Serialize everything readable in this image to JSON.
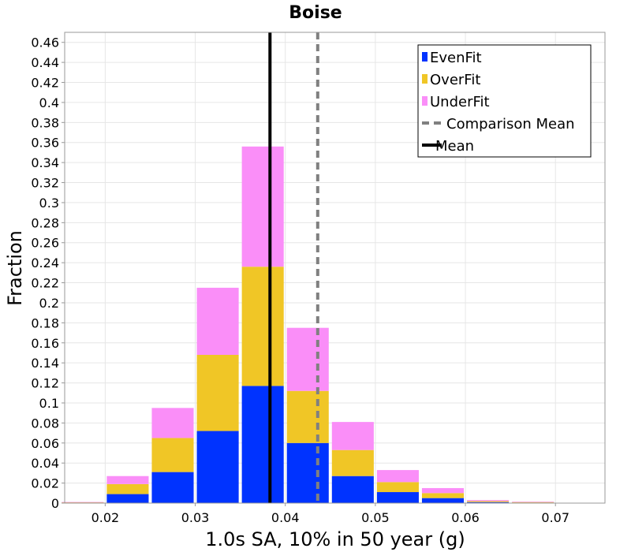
{
  "chart_data": {
    "type": "bar",
    "stacked": true,
    "title": "Boise",
    "xlabel": "1.0s SA, 10% in 50 year (g)",
    "ylabel": "Fraction",
    "xlim": [
      0.0155,
      0.0755
    ],
    "ylim": [
      0,
      0.47
    ],
    "grid": true,
    "legend_position": "top-right",
    "bin_width": 0.005,
    "x": [
      0.0175,
      0.0225,
      0.0275,
      0.0325,
      0.0375,
      0.0425,
      0.0475,
      0.0525,
      0.0575,
      0.0625,
      0.0675,
      0.0725
    ],
    "series": [
      {
        "name": "EvenFit",
        "color": "#0033ff",
        "values": [
          0.0005,
          0.009,
          0.031,
          0.072,
          0.117,
          0.06,
          0.027,
          0.011,
          0.005,
          0.001,
          0.0005,
          0.0
        ]
      },
      {
        "name": "OverFit",
        "color": "#f0c626",
        "values": [
          0.0003,
          0.01,
          0.034,
          0.076,
          0.119,
          0.052,
          0.026,
          0.01,
          0.005,
          0.001,
          0.0005,
          0.0
        ]
      },
      {
        "name": "UnderFit",
        "color": "#fa8ef8",
        "values": [
          0.0003,
          0.008,
          0.03,
          0.067,
          0.12,
          0.063,
          0.028,
          0.012,
          0.005,
          0.001,
          0.0005,
          0.0
        ]
      }
    ],
    "lines": [
      {
        "name": "Comparison Mean",
        "x": 0.0436,
        "color": "#808080",
        "style": "dashed"
      },
      {
        "name": "Mean",
        "x": 0.0383,
        "color": "#000000",
        "style": "solid"
      }
    ],
    "x_ticks": [
      0.02,
      0.03,
      0.04,
      0.05,
      0.06,
      0.07
    ],
    "x_tick_labels": [
      "0.02",
      "0.03",
      "0.04",
      "0.05",
      "0.06",
      "0.07"
    ],
    "y_ticks": [
      0,
      0.02,
      0.04,
      0.06,
      0.08,
      0.1,
      0.12,
      0.14,
      0.16,
      0.18,
      0.2,
      0.22,
      0.24,
      0.26,
      0.28,
      0.3,
      0.32,
      0.34,
      0.36,
      0.38,
      0.4,
      0.42,
      0.44,
      0.46
    ],
    "y_tick_labels": [
      "0",
      "0.02",
      "0.04",
      "0.06",
      "0.08",
      "0.1",
      "0.12",
      "0.14",
      "0.16",
      "0.18",
      "0.2",
      "0.22",
      "0.24",
      "0.26",
      "0.28",
      "0.3",
      "0.32",
      "0.34",
      "0.36",
      "0.38",
      "0.4",
      "0.42",
      "0.44",
      "0.46"
    ],
    "legend": [
      {
        "label": "EvenFit",
        "kind": "box",
        "color": "#0033ff"
      },
      {
        "label": "OverFit",
        "kind": "box",
        "color": "#f0c626"
      },
      {
        "label": "UnderFit",
        "kind": "box",
        "color": "#fa8ef8"
      },
      {
        "label": "Comparison Mean",
        "kind": "dashed",
        "color": "#808080"
      },
      {
        "label": "Mean",
        "kind": "solid",
        "color": "#000000"
      }
    ],
    "colors": {
      "grid": "#e6e6e6",
      "plot_border": "#999999",
      "background": "#ffffff"
    }
  }
}
